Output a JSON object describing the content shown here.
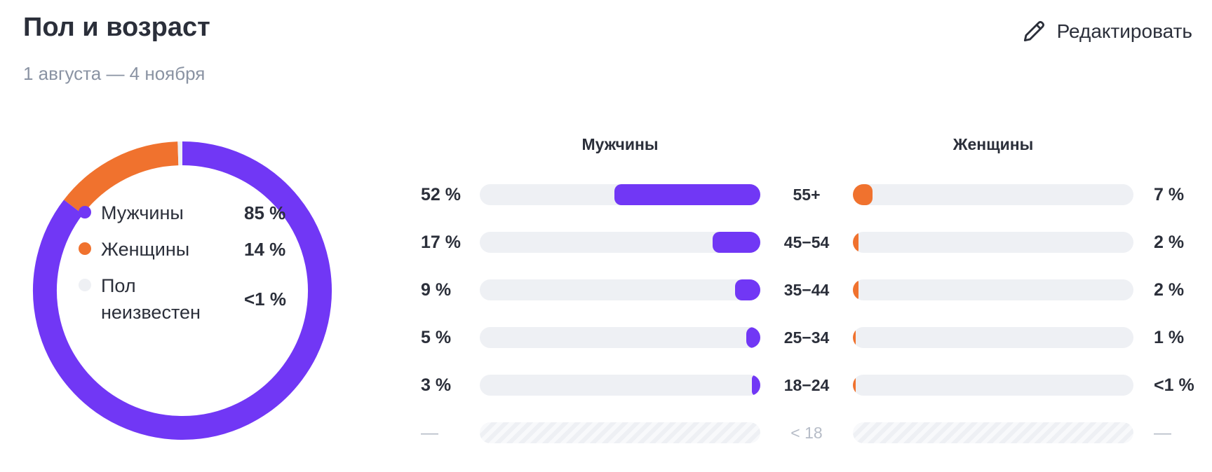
{
  "header": {
    "title": "Пол и возраст",
    "subtitle": "1 августа — 4 ноября",
    "edit_label": "Редактировать",
    "edit_icon": "pencil-icon"
  },
  "colors": {
    "male": "#7137f5",
    "female": "#f0722e",
    "unknown": "#eef0f4",
    "track": "#eef0f4"
  },
  "gender_legend": [
    {
      "label": "Мужчины",
      "value": "85 %",
      "color": "#7137f5"
    },
    {
      "label": "Женщины",
      "value": "14 %",
      "color": "#f0722e"
    },
    {
      "label": "Пол неизвестен",
      "value": "<1 %",
      "color": "#eef0f4"
    }
  ],
  "columns": {
    "male": "Мужчины",
    "female": "Женщины"
  },
  "age_rows": [
    {
      "age": "55+",
      "male_label": "52 %",
      "female_label": "7 %"
    },
    {
      "age": "45−54",
      "male_label": "17 %",
      "female_label": "2 %"
    },
    {
      "age": "35−44",
      "male_label": "9 %",
      "female_label": "2 %"
    },
    {
      "age": "25−34",
      "male_label": "5 %",
      "female_label": "1 %"
    },
    {
      "age": "18−24",
      "male_label": "3 %",
      "female_label": "<1 %"
    },
    {
      "age": "< 18",
      "male_label": "—",
      "female_label": "—"
    }
  ],
  "chart_data": [
    {
      "type": "pie",
      "categories": [
        "Мужчины",
        "Женщины",
        "Пол неизвестен"
      ],
      "values": [
        85,
        14,
        0.5
      ],
      "colors": [
        "#7137f5",
        "#f0722e",
        "#eef0f4"
      ]
    },
    {
      "type": "bar",
      "categories": [
        "55+",
        "45−54",
        "35−44",
        "25−34",
        "18−24",
        "< 18"
      ],
      "series": [
        {
          "name": "Мужчины",
          "values": [
            52,
            17,
            9,
            5,
            3,
            null
          ],
          "color": "#7137f5"
        },
        {
          "name": "Женщины",
          "values": [
            7,
            2,
            2,
            1,
            0.5,
            null
          ],
          "color": "#f0722e"
        }
      ],
      "ylim": [
        0,
        100
      ]
    }
  ]
}
